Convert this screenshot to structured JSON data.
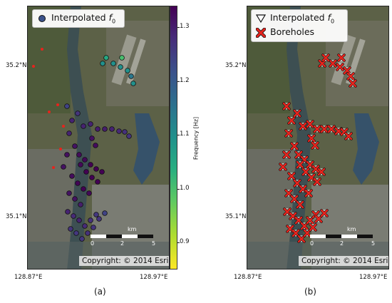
{
  "panels": [
    {
      "id": "a",
      "label": "(a)",
      "legend": [
        {
          "symbol": "circle",
          "text": "Interpolated f0",
          "text_main": "Interpolated ",
          "text_italic": "f",
          "text_sub": "0"
        }
      ],
      "lat_labels": [
        "35.2°N",
        "35.1°N"
      ],
      "lon_labels": [
        "128.87°E",
        "128.97°E"
      ],
      "scalebar": {
        "unit": "km",
        "ticks": [
          "0",
          "2",
          "5"
        ]
      },
      "copyright": "Copyright: © 2014 Esri",
      "colorbar": {
        "label": "Frequency [Hz]",
        "ticks": [
          "1.3",
          "1.2",
          "1.1",
          "1.0",
          "0.9"
        ],
        "range": [
          0.85,
          1.34
        ],
        "colormap": "viridis-reversed"
      },
      "marker_color_range": [
        "#fde725",
        "#440154"
      ]
    },
    {
      "id": "b",
      "label": "(b)",
      "legend": [
        {
          "symbol": "triangle-down-outline",
          "text": "Interpolated f0",
          "text_main": "Interpolated ",
          "text_italic": "f",
          "text_sub": "0"
        },
        {
          "symbol": "x-red",
          "text": "Boreholes"
        }
      ],
      "lat_labels": [
        "35.2°N",
        "35.1°N"
      ],
      "lon_labels": [
        "128.87°E",
        "128.97°E"
      ],
      "scalebar": {
        "unit": "km",
        "ticks": [
          "0",
          "2",
          "5"
        ]
      },
      "copyright": "Copyright: © 2014 Esri",
      "borehole_color": "#e8231c"
    }
  ]
}
